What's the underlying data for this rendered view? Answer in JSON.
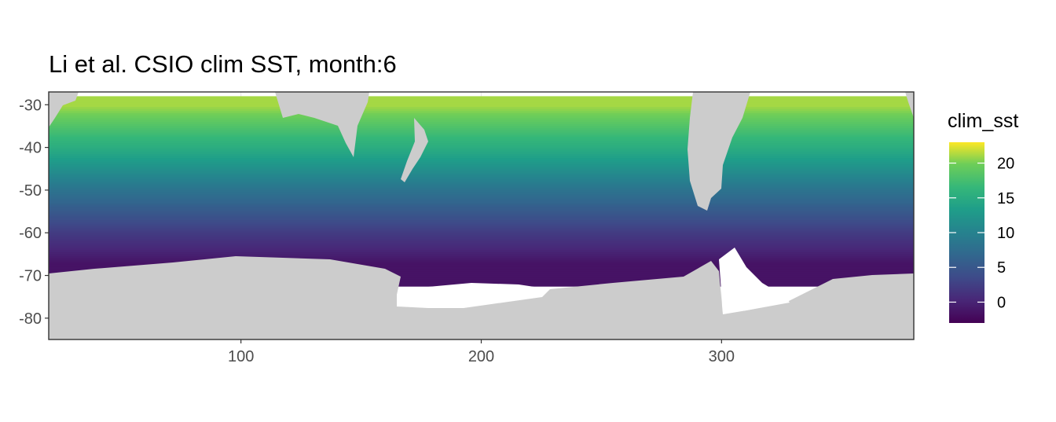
{
  "title": "Li et al. CSIO clim SST, month:6",
  "chart_data": {
    "type": "heatmap",
    "title": "Li et al. CSIO clim SST, month:6",
    "xlabel": "",
    "ylabel": "",
    "x_ticks": [
      100,
      200,
      300
    ],
    "y_ticks": [
      -30,
      -40,
      -50,
      -60,
      -70,
      -80
    ],
    "xlim": [
      20,
      380
    ],
    "ylim": [
      -85,
      -27
    ],
    "grid": true,
    "legend": {
      "title": "clim_sst",
      "placement": "right",
      "ticks": [
        20,
        15,
        10,
        5,
        0
      ],
      "range": [
        -3,
        23
      ],
      "colormap": "viridis"
    },
    "land_color": "#cccccc",
    "missing_color": "#ffffff",
    "approx_zonal_sst": [
      {
        "lat": -30,
        "sst": 21
      },
      {
        "lat": -40,
        "sst": 15
      },
      {
        "lat": -50,
        "sst": 8
      },
      {
        "lat": -60,
        "sst": 2
      },
      {
        "lat": -67,
        "sst": -1.5
      }
    ]
  }
}
